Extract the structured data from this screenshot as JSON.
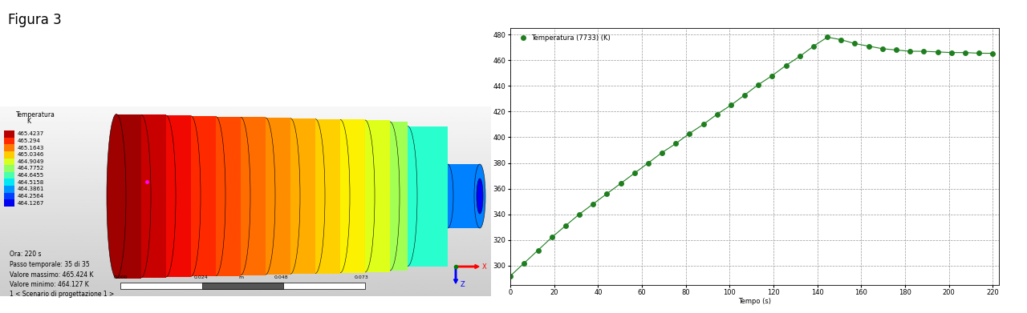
{
  "figure_label": "Figura 3",
  "render": {
    "colorbar": {
      "title": [
        "Temperatura",
        "K"
      ],
      "ticks": [
        465.4237,
        465.294,
        465.1643,
        465.0346,
        464.9049,
        464.7752,
        464.6455,
        464.5158,
        464.3861,
        464.2564,
        464.1267
      ]
    },
    "info_lines": [
      "Ora: 220 s",
      "Passo temporale: 35 di 35",
      "Valore massimo: 465.424 K",
      "Valore minimo: 464.127 K",
      "1 < Scenario di progettazione 1 >"
    ],
    "scale_bar": {
      "ticks": [
        "0.000",
        "0.024",
        "0.048",
        "0.073"
      ],
      "unit": "m"
    },
    "triad_labels": [
      "X",
      "Z"
    ]
  },
  "chart_data": {
    "type": "line",
    "x_label": "Tempo (s)",
    "x": [
      0,
      6.3,
      12.6,
      18.9,
      25.1,
      31.4,
      37.7,
      44,
      50.3,
      56.6,
      62.9,
      69.1,
      75.4,
      81.7,
      88,
      94.3,
      100.6,
      106.9,
      113.1,
      119.4,
      125.7,
      132,
      138.3,
      144.6,
      150.9,
      157.1,
      163.4,
      169.7,
      176,
      182.3,
      188.6,
      194.9,
      201.1,
      207.4,
      213.7,
      220
    ],
    "series": [
      {
        "name": "Temperatura (7733) (K)",
        "color": "#1f7f1f",
        "marker": "circle",
        "line_style": "solid",
        "values": [
          292,
          302,
          312,
          322,
          331,
          340,
          348,
          356,
          364,
          372,
          380,
          388,
          395,
          403,
          410,
          418,
          425,
          433,
          441,
          448,
          456,
          463,
          471,
          478,
          476,
          473,
          471,
          469,
          468,
          467,
          467,
          466.5,
          466,
          466,
          465.5,
          465.4
        ]
      }
    ],
    "xlim": [
      0,
      223
    ],
    "ylim": [
      285,
      485
    ],
    "xticks": [
      0,
      20,
      40,
      60,
      80,
      100,
      120,
      140,
      160,
      180,
      200,
      220
    ],
    "yticks": [
      300,
      320,
      340,
      360,
      380,
      400,
      420,
      440,
      460,
      480
    ],
    "grid": true,
    "legend": "upper left"
  }
}
